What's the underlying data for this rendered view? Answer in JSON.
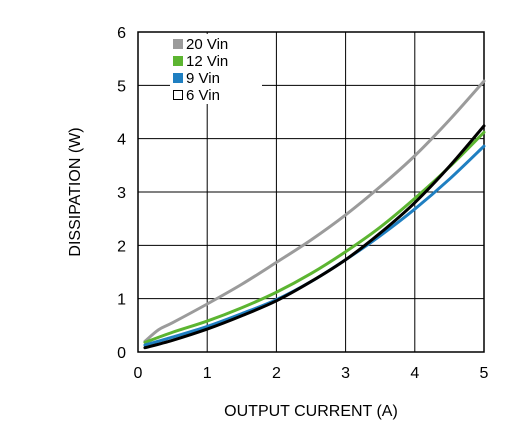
{
  "chart_data": {
    "type": "line",
    "xlabel": "OUTPUT CURRENT (A)",
    "ylabel": "DISSIPATION (W)",
    "xlim": [
      0,
      5
    ],
    "ylim": [
      0,
      6
    ],
    "xticks": [
      "0",
      "1",
      "2",
      "3",
      "4",
      "5"
    ],
    "yticks": [
      "0",
      "1",
      "2",
      "3",
      "4",
      "5",
      "6"
    ],
    "grid": true,
    "legend_position": "top-left",
    "series": [
      {
        "name": "20 Vin",
        "color": "#9b9b9b",
        "x": [
          0.1,
          0.3,
          0.5,
          1.0,
          1.5,
          2.0,
          2.5,
          3.0,
          3.5,
          4.0,
          4.5,
          5.0
        ],
        "y": [
          0.2,
          0.42,
          0.55,
          0.9,
          1.27,
          1.68,
          2.1,
          2.57,
          3.1,
          3.68,
          4.35,
          5.08
        ]
      },
      {
        "name": "12 Vin",
        "color": "#5cb531",
        "x": [
          0.1,
          0.5,
          1.0,
          1.5,
          2.0,
          2.5,
          3.0,
          3.5,
          4.0,
          4.5,
          5.0
        ],
        "y": [
          0.18,
          0.37,
          0.58,
          0.83,
          1.12,
          1.47,
          1.88,
          2.34,
          2.88,
          3.47,
          4.12
        ]
      },
      {
        "name": "9 Vin",
        "color": "#1f7fc1",
        "x": [
          0.1,
          0.5,
          1.0,
          1.5,
          2.0,
          2.5,
          3.0,
          3.5,
          4.0,
          4.5,
          5.0
        ],
        "y": [
          0.13,
          0.28,
          0.48,
          0.72,
          0.98,
          1.32,
          1.73,
          2.18,
          2.68,
          3.24,
          3.86
        ]
      },
      {
        "name": "6 Vin",
        "color": "#000000",
        "x": [
          0.1,
          0.5,
          1.0,
          1.5,
          2.0,
          2.5,
          3.0,
          3.5,
          4.0,
          4.5,
          5.0
        ],
        "y": [
          0.08,
          0.22,
          0.43,
          0.68,
          0.96,
          1.32,
          1.73,
          2.23,
          2.8,
          3.48,
          4.24
        ]
      }
    ]
  }
}
